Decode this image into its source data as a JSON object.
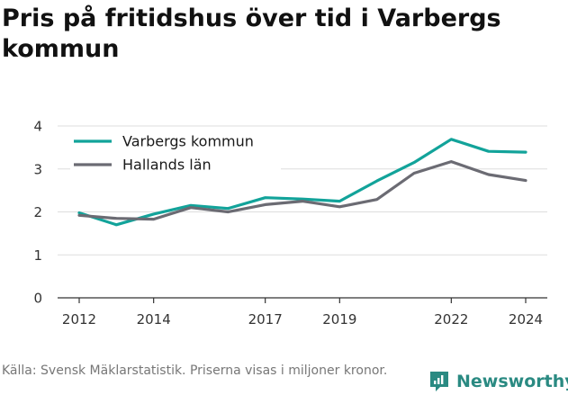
{
  "title": "Pris på fritidshus över tid i Varbergs kommun",
  "footer": {
    "source": "Källa: Svensk Mäklarstatistik. Priserna visas i miljoner kronor.",
    "brand": "Newsworthy"
  },
  "colors": {
    "series_1": "#12a39a",
    "series_2": "#6b6b73",
    "grid": "#dddddd",
    "axis": "#333333",
    "brand": "#2a8a82"
  },
  "chart_data": {
    "type": "line",
    "title": "Pris på fritidshus över tid i Varbergs kommun",
    "xlabel": "",
    "ylabel": "",
    "x": [
      2012,
      2013,
      2014,
      2015,
      2016,
      2017,
      2018,
      2019,
      2020,
      2021,
      2022,
      2023,
      2024
    ],
    "xticks": [
      2012,
      2014,
      2017,
      2019,
      2022,
      2024
    ],
    "xlim": [
      2012,
      2024
    ],
    "ylim": [
      0,
      4
    ],
    "yticks": [
      0,
      1,
      2,
      3,
      4
    ],
    "grid": "horizontal",
    "legend_position": "top-left",
    "series": [
      {
        "name": "Varbergs kommun",
        "color": "#12a39a",
        "values": [
          1.98,
          1.7,
          1.95,
          2.15,
          2.08,
          2.33,
          2.3,
          2.25,
          2.72,
          3.15,
          3.69,
          3.41,
          3.39
        ]
      },
      {
        "name": "Hallands län",
        "color": "#6b6b73",
        "values": [
          1.92,
          1.85,
          1.83,
          2.1,
          2.0,
          2.17,
          2.25,
          2.12,
          2.29,
          2.9,
          3.17,
          2.87,
          2.73
        ]
      }
    ]
  }
}
